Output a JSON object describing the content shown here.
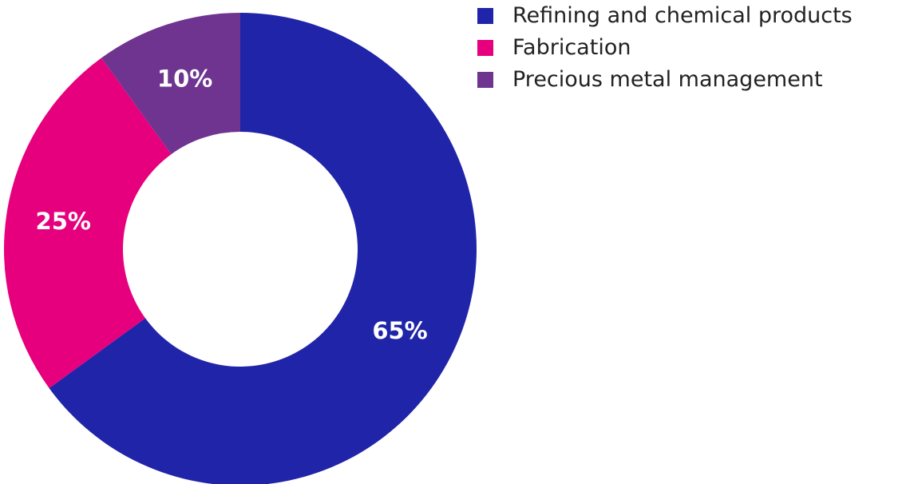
{
  "chart_data": {
    "type": "pie",
    "donut": true,
    "title": "",
    "categories": [
      "Refining and chemical products",
      "Fabrication",
      "Precious metal management"
    ],
    "values": [
      65,
      25,
      10
    ],
    "labels": [
      "65%",
      "25%",
      "10%"
    ],
    "colors": [
      "#2024a8",
      "#e6007e",
      "#6e3490"
    ],
    "legend_position": "top-right"
  }
}
